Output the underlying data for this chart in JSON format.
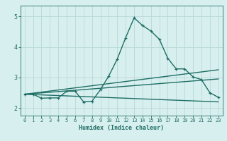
{
  "title": "",
  "xlabel": "Humidex (Indice chaleur)",
  "xlim": [
    -0.5,
    23.5
  ],
  "ylim": [
    1.75,
    5.35
  ],
  "xticks": [
    0,
    1,
    2,
    3,
    4,
    5,
    6,
    7,
    8,
    9,
    10,
    11,
    12,
    13,
    14,
    15,
    16,
    17,
    18,
    19,
    20,
    21,
    22,
    23
  ],
  "yticks": [
    2,
    3,
    4,
    5
  ],
  "background_color": "#d8efef",
  "line_color": "#1e6e65",
  "grid_color": "#b8d8d8",
  "series": [
    {
      "x": [
        0,
        1,
        2,
        3,
        4,
        5,
        6,
        7,
        8,
        9,
        10,
        11,
        12,
        13,
        14,
        15,
        16,
        17,
        18,
        19,
        20,
        21,
        22,
        23
      ],
      "y": [
        2.45,
        2.45,
        2.32,
        2.33,
        2.33,
        2.55,
        2.55,
        2.2,
        2.22,
        2.6,
        3.05,
        3.6,
        4.3,
        4.95,
        4.7,
        4.52,
        4.25,
        3.63,
        3.28,
        3.28,
        3.02,
        2.93,
        2.5,
        2.35
      ],
      "marker": true,
      "linewidth": 1.0
    },
    {
      "x": [
        0,
        23
      ],
      "y": [
        2.45,
        2.2
      ],
      "marker": false,
      "linewidth": 1.0
    },
    {
      "x": [
        0,
        23
      ],
      "y": [
        2.45,
        2.95
      ],
      "marker": false,
      "linewidth": 1.0
    },
    {
      "x": [
        0,
        23
      ],
      "y": [
        2.45,
        3.25
      ],
      "marker": false,
      "linewidth": 1.0
    }
  ]
}
